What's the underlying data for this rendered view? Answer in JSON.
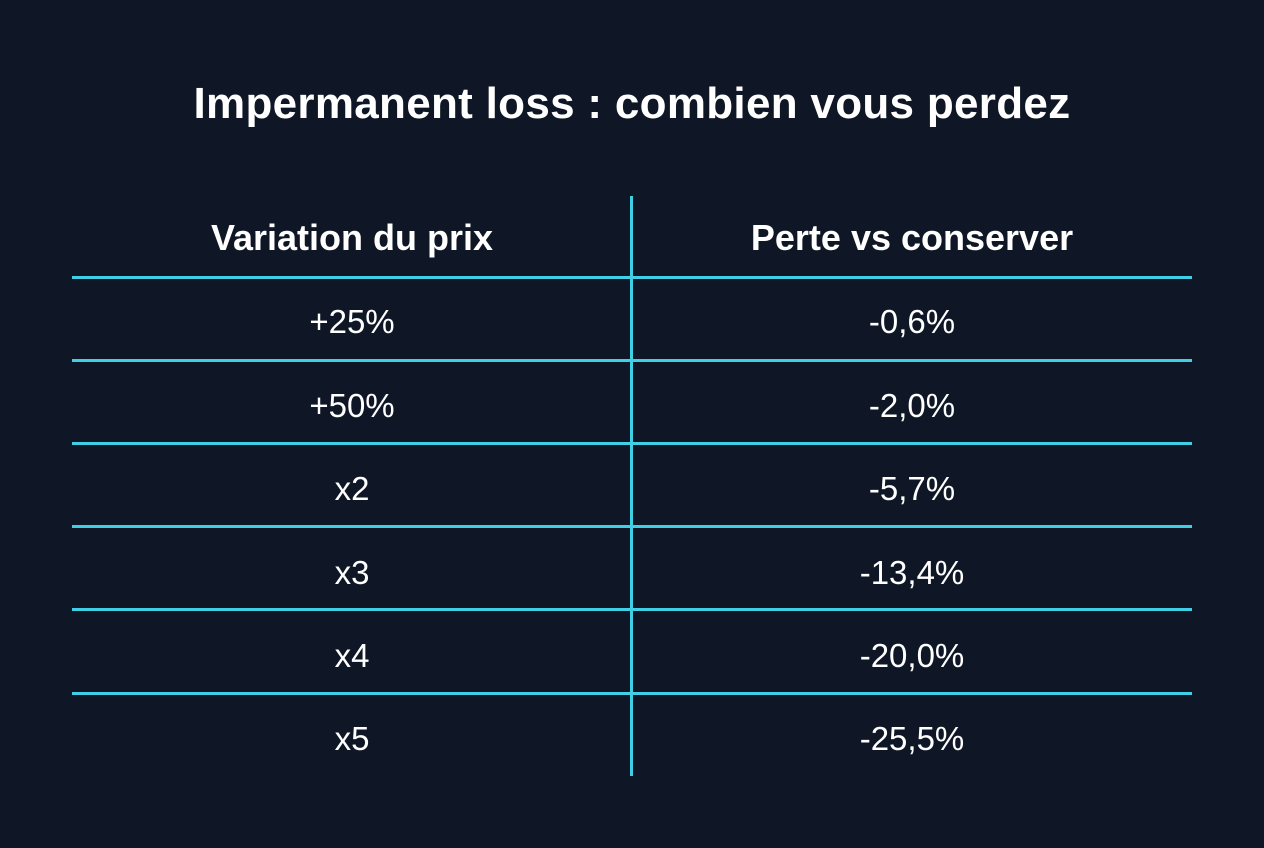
{
  "title": "Impermanent loss : combien vous perdez",
  "colors": {
    "background": "#0f1726",
    "accent_lines": "#3fd0e6",
    "text": "#ffffff"
  },
  "chart_data": {
    "type": "table",
    "title": "Impermanent loss : combien vous perdez",
    "columns": [
      "Variation du prix",
      "Perte vs conserver"
    ],
    "rows": [
      [
        "+25%",
        "-0,6%"
      ],
      [
        "+50%",
        "-2,0%"
      ],
      [
        "x2",
        "-5,7%"
      ],
      [
        "x3",
        "-13,4%"
      ],
      [
        "x4",
        "-20,0%"
      ],
      [
        "x5",
        "-25,5%"
      ]
    ]
  }
}
